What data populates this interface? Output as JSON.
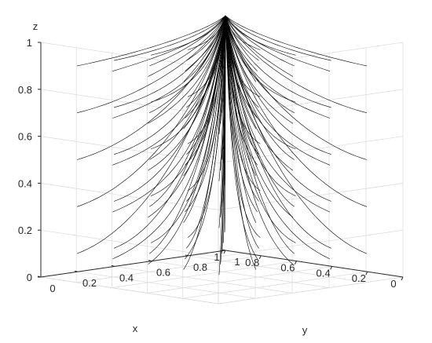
{
  "chart_data": {
    "type": "line",
    "title": "",
    "xlabel": "x",
    "ylabel": "y",
    "zlabel": "z",
    "xlim": [
      0,
      1
    ],
    "ylim": [
      0,
      1
    ],
    "zlim": [
      0,
      1
    ],
    "x_ticks": [
      "0",
      "0.2",
      "0.4",
      "0.6",
      "0.8",
      "1"
    ],
    "y_ticks": [
      "0",
      "0.2",
      "0.4",
      "0.6",
      "0.8",
      "1"
    ],
    "z_ticks": [
      "0",
      "0.2",
      "0.4",
      "0.6",
      "0.8",
      "1"
    ],
    "grid": true,
    "line_color": "#000000",
    "converge_point": [
      1,
      1,
      1
    ],
    "start_z_levels": [
      0.1,
      0.3,
      0.5,
      0.7,
      0.9
    ],
    "start_grid_x": [
      0.1,
      0.3,
      0.5,
      0.7,
      0.9
    ],
    "start_grid_y": [
      0.1,
      0.3,
      0.5,
      0.7,
      0.9
    ]
  }
}
